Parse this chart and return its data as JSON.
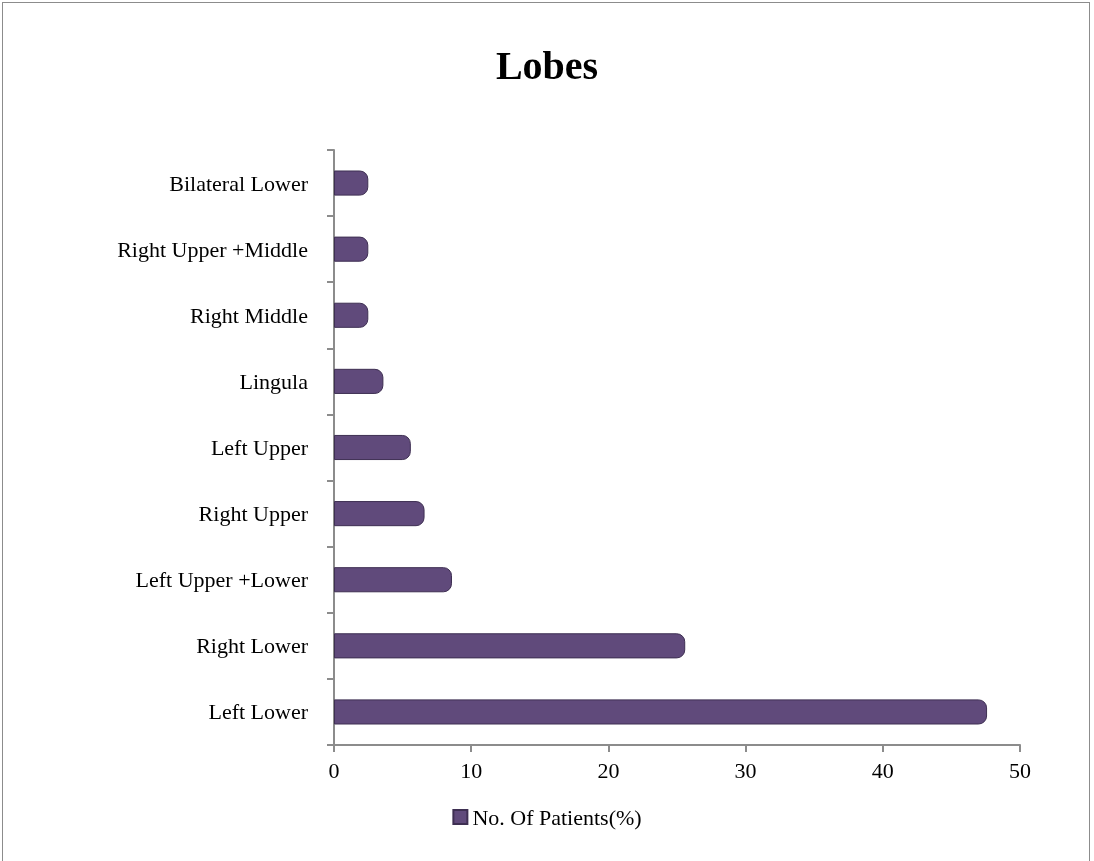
{
  "chart_data": {
    "type": "bar",
    "title": "Lobes",
    "orientation": "horizontal",
    "categories": [
      "Bilateral Lower",
      "Right Upper +Middle",
      "Right Middle",
      "Lingula",
      "Left Upper",
      "Right Upper",
      "Left Upper +Lower",
      "Right Lower",
      "Left Lower"
    ],
    "series": [
      {
        "name": "No. Of Patients(%)",
        "color": "#604a7b",
        "values": [
          2.5,
          2.5,
          2.5,
          3.6,
          5.6,
          6.6,
          8.6,
          25.6,
          47.6
        ]
      }
    ],
    "xlim": [
      0,
      50
    ],
    "xticks": [
      0,
      10,
      20,
      30,
      40,
      50
    ],
    "grid": false,
    "legend": "bottom"
  }
}
